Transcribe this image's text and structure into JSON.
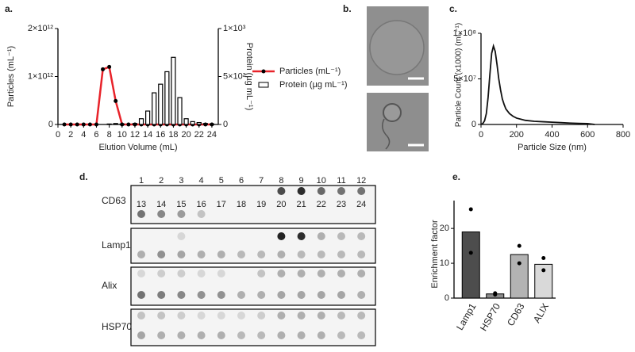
{
  "panel_labels": [
    "a.",
    "b.",
    "c.",
    "d.",
    "e."
  ],
  "chart_data": [
    {
      "type": "combo",
      "x": [
        1,
        2,
        3,
        4,
        5,
        6,
        7,
        8,
        9,
        10,
        11,
        12,
        13,
        14,
        15,
        16,
        17,
        18,
        19,
        20,
        21,
        22,
        23,
        24
      ],
      "xlim": [
        0,
        25
      ],
      "xticks": [
        0,
        2,
        4,
        6,
        8,
        10,
        12,
        14,
        16,
        18,
        20,
        22,
        24
      ],
      "xlabel": "Elution Volume (mL)",
      "ylabel": "Particles (mL⁻¹)",
      "ylim": [
        0,
        2000000000000
      ],
      "yticks": [
        0,
        {
          "value": 1000000000000,
          "label": "1×10¹²"
        },
        {
          "value": 2000000000000,
          "label": "2×10¹²"
        }
      ],
      "y2label": "Protein (µg mL⁻¹)",
      "y2lim": [
        0,
        1000
      ],
      "y2ticks": [
        0,
        {
          "value": 500,
          "label": "5×10²"
        },
        {
          "value": 1000,
          "label": "1×10³"
        }
      ],
      "legend": "right",
      "series": [
        {
          "name": "Particles (mL⁻¹)",
          "type": "line",
          "color": "#e8232a",
          "values": [
            0,
            0,
            0,
            0,
            0,
            0,
            1150000000000,
            1200000000000,
            490000000000,
            0,
            0,
            0,
            0,
            0,
            0,
            0,
            0,
            0,
            0,
            0,
            0,
            0,
            0,
            0
          ]
        },
        {
          "name": "Protein (µg mL⁻¹)",
          "type": "bar",
          "axis": "y2",
          "color": "#ffffff",
          "values": [
            0,
            0,
            0,
            0,
            0,
            0,
            0,
            5,
            10,
            5,
            0,
            10,
            60,
            140,
            330,
            420,
            550,
            700,
            280,
            60,
            30,
            20,
            10,
            5
          ]
        }
      ]
    },
    {
      "type": "line",
      "xlabel": "Particle Size (nm)",
      "ylabel": "Particle Count (x1000) (mL⁻¹)",
      "xlim": [
        0,
        800
      ],
      "xticks": [
        0,
        200,
        400,
        600,
        800
      ],
      "ylim": [
        0,
        100000000
      ],
      "yticks": [
        0,
        {
          "value": 50000000,
          "label": "5×10⁷"
        },
        {
          "value": 100000000,
          "label": "1×10⁸"
        }
      ],
      "x": [
        0,
        10,
        20,
        30,
        40,
        50,
        60,
        70,
        80,
        90,
        100,
        110,
        120,
        130,
        140,
        160,
        180,
        200,
        220,
        250,
        300,
        350,
        400,
        450,
        500,
        550,
        600,
        640
      ],
      "series": [
        {
          "color": "#111111",
          "values": [
            0,
            1000000,
            4000000,
            12000000,
            30000000,
            55000000,
            78000000,
            86000000,
            80000000,
            66000000,
            50000000,
            38000000,
            28000000,
            22000000,
            17000000,
            12000000,
            9000000,
            7000000,
            6000000,
            4500000,
            3500000,
            3000000,
            2500000,
            2000000,
            1500000,
            1200000,
            1000000,
            0
          ]
        }
      ]
    },
    {
      "type": "bar",
      "ylabel": "Enrichment factor",
      "categories": [
        "Lamp1",
        "HSP70",
        "CD63",
        "ALIX"
      ],
      "values": [
        19,
        1.2,
        12.5,
        9.7
      ],
      "replicates": [
        [
          25.5,
          13
        ],
        [
          1.4,
          1
        ],
        [
          15,
          10
        ],
        [
          11.5,
          8
        ]
      ],
      "colors": [
        "#4d4d4d",
        "#8c8c8c",
        "#b3b3b3",
        "#d9d9d9"
      ],
      "ylim": [
        0,
        28
      ],
      "yticks": [
        0,
        10,
        20
      ]
    }
  ],
  "blot": {
    "rows": [
      "CD63",
      "Lamp1",
      "Alix",
      "HSP70"
    ],
    "lanes": [
      1,
      2,
      3,
      4,
      5,
      6,
      7,
      8,
      9,
      10,
      11,
      12,
      13,
      14,
      15,
      16,
      17,
      18,
      19,
      20,
      21,
      22,
      23,
      24
    ]
  }
}
